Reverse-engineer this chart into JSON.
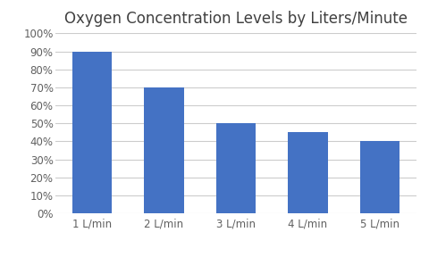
{
  "title": "Oxygen Concentration Levels by Liters/Minute",
  "categories": [
    "1 L/min",
    "2 L/min",
    "3 L/min",
    "4 L/min",
    "5 L/min"
  ],
  "values": [
    0.9,
    0.7,
    0.5,
    0.45,
    0.4
  ],
  "bar_color": "#4472C4",
  "ylim": [
    0,
    1.0
  ],
  "yticks": [
    0.0,
    0.1,
    0.2,
    0.3,
    0.4,
    0.5,
    0.6,
    0.7,
    0.8,
    0.9,
    1.0
  ],
  "background_color": "#ffffff",
  "title_fontsize": 12,
  "tick_fontsize": 8.5,
  "grid_color": "#cccccc",
  "title_color": "#404040",
  "tick_color": "#606060"
}
